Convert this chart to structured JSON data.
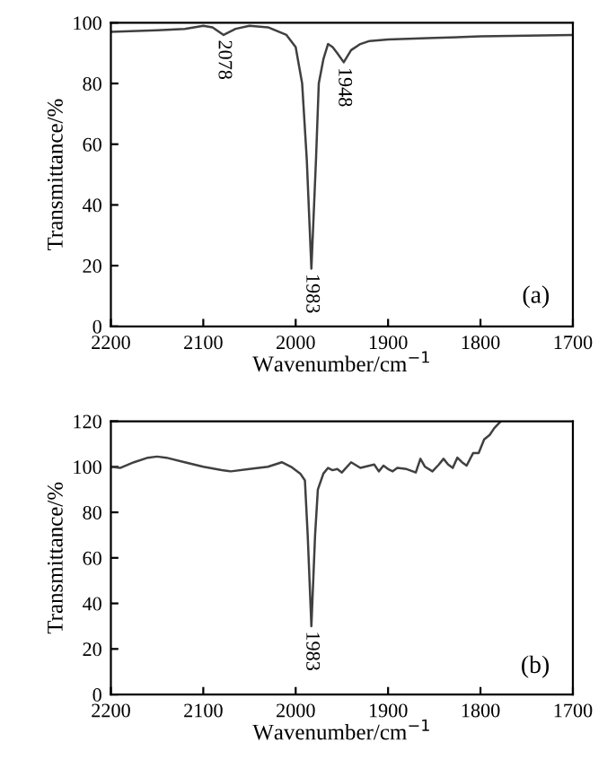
{
  "chart_data": [
    {
      "type": "line",
      "xlabel": "Wavenumber/cm$^{−1}$",
      "ylabel": "Transmittance/%",
      "xlim": [
        2200,
        1700
      ],
      "xticks": [
        2200,
        2100,
        2000,
        1900,
        1800,
        1700
      ],
      "ylim": [
        0,
        100
      ],
      "yticks": [
        0,
        20,
        40,
        60,
        80,
        100
      ],
      "grid": false,
      "legend": false,
      "marker": "none",
      "line_style": "solid",
      "series": [
        {
          "color": "#404040",
          "x": [
            2200,
            2150,
            2120,
            2100,
            2090,
            2078,
            2065,
            2050,
            2030,
            2010,
            2000,
            1993,
            1988,
            1983,
            1978,
            1975,
            1970,
            1965,
            1960,
            1955,
            1948,
            1940,
            1930,
            1920,
            1900,
            1850,
            1800,
            1700
          ],
          "values": [
            97,
            97.5,
            98,
            99,
            98.5,
            96,
            98,
            99,
            98.5,
            96,
            92,
            80,
            55,
            19,
            55,
            80,
            88,
            93,
            92,
            90,
            87,
            91,
            93,
            94,
            94.5,
            95,
            95.5,
            96
          ]
        }
      ],
      "annotations": [
        {
          "text": "2078",
          "x": 2078,
          "y": 96
        },
        {
          "text": "1983",
          "x": 1983,
          "y": 19
        },
        {
          "text": "1948",
          "x": 1948,
          "y": 87
        },
        "(a)"
      ]
    },
    {
      "type": "line",
      "xlabel": "Wavenumber/cm$^{−1}$",
      "ylabel": "Transmittance/%",
      "xlim": [
        2200,
        1700
      ],
      "xticks": [
        2200,
        2100,
        2000,
        1900,
        1800,
        1700
      ],
      "ylim": [
        0,
        120
      ],
      "yticks": [
        0,
        20,
        40,
        60,
        80,
        100,
        120
      ],
      "grid": false,
      "legend": false,
      "marker": "none",
      "line_style": "solid",
      "series": [
        {
          "color": "#404040",
          "x": [
            2200,
            2190,
            2175,
            2160,
            2150,
            2140,
            2120,
            2100,
            2080,
            2070,
            2050,
            2030,
            2015,
            2005,
            1995,
            1990,
            1987,
            1983,
            1979,
            1976,
            1970,
            1965,
            1960,
            1955,
            1950,
            1940,
            1930,
            1920,
            1915,
            1910,
            1905,
            1900,
            1895,
            1890,
            1880,
            1870,
            1865,
            1860,
            1852,
            1845,
            1840,
            1835,
            1830,
            1825,
            1820,
            1815,
            1808,
            1802,
            1796,
            1790,
            1785,
            1778
          ],
          "values": [
            100,
            99.5,
            102,
            104,
            104.5,
            104,
            102,
            100,
            98.5,
            98,
            99,
            100,
            102,
            100,
            97,
            94,
            70,
            30,
            70,
            90,
            97,
            99.5,
            98.5,
            99,
            97.5,
            102,
            99.5,
            100.5,
            101,
            98,
            100.5,
            99,
            98,
            99.5,
            99,
            97.5,
            103.5,
            100,
            98,
            101,
            103.5,
            101,
            99.5,
            104,
            102,
            100.5,
            106,
            106,
            112,
            114,
            117,
            120
          ]
        }
      ],
      "annotations": [
        {
          "text": "1983",
          "x": 1983,
          "y": 30
        },
        "(b)"
      ]
    }
  ]
}
